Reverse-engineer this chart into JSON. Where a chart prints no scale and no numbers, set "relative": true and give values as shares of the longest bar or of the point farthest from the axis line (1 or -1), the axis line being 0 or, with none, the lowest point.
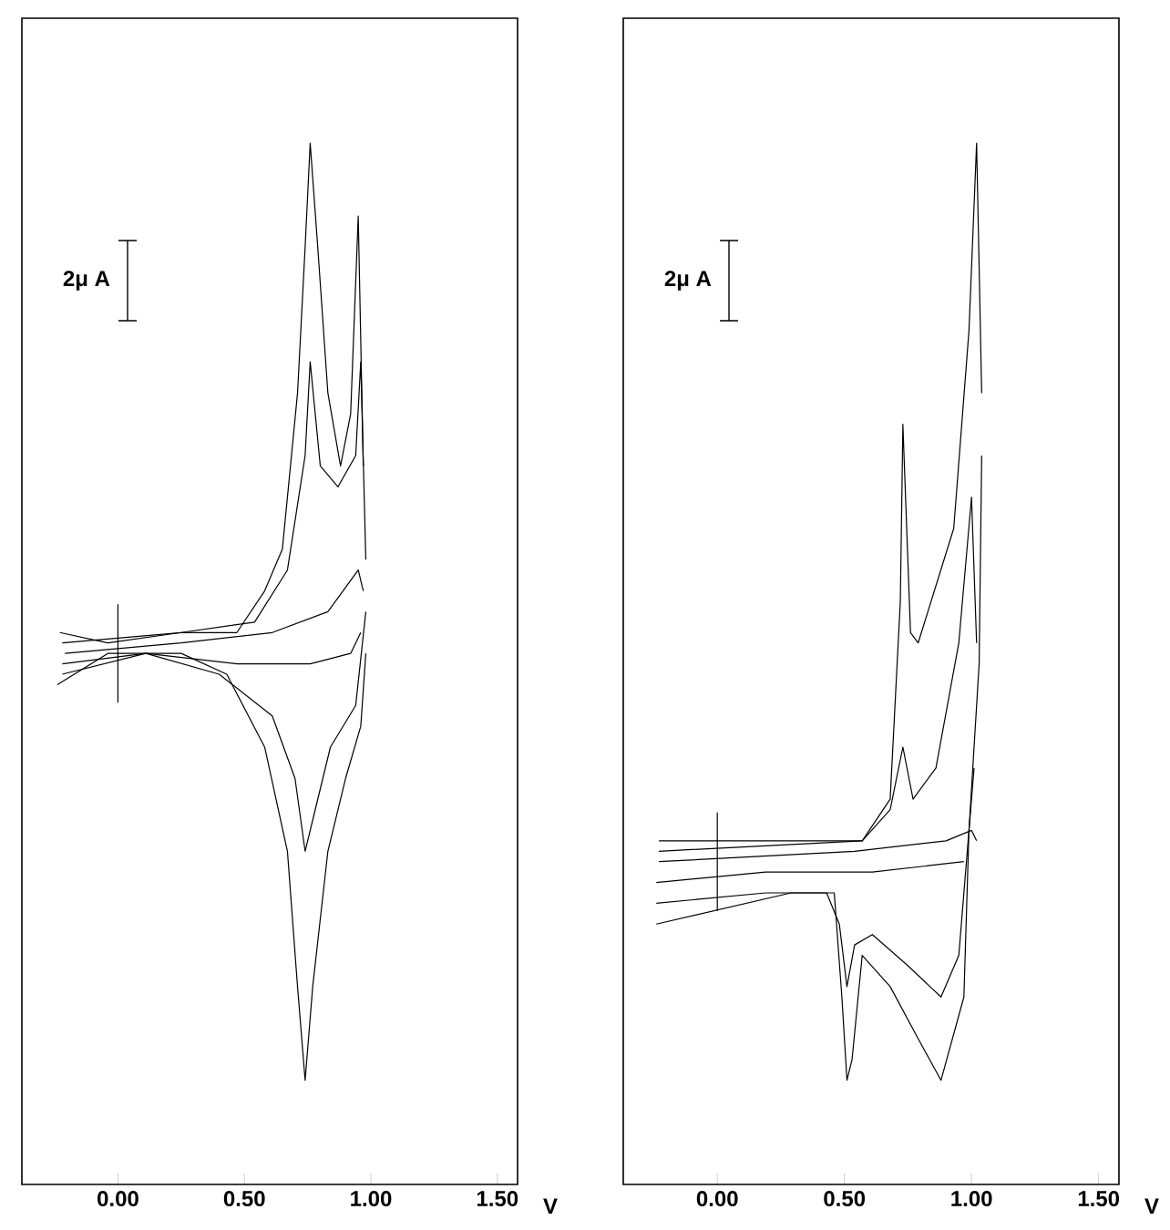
{
  "chart_data": [
    {
      "type": "line",
      "relative": true,
      "xlabel": "V",
      "xlim": [
        -0.38,
        1.58
      ],
      "xticks": [
        {
          "value": 0,
          "label": "0.00"
        },
        {
          "value": 0.5,
          "label": "0.50"
        },
        {
          "value": 1,
          "label": "1.00"
        },
        {
          "value": 1.5,
          "label": "1.50"
        }
      ],
      "tick_labels": "x",
      "annotations": [
        "2μ A"
      ],
      "series": [
        {
          "color": "#000000",
          "x": [
            -0.21,
            0.25,
            0.61,
            0.83,
            0.95,
            0.97
          ],
          "values": [
            0.51,
            0.52,
            0.53,
            0.55,
            0.59,
            0.57
          ]
        },
        {
          "color": "#000000",
          "x": [
            0.96,
            0.92,
            0.76,
            0.47,
            0.11,
            -0.22
          ],
          "values": [
            0.53,
            0.51,
            0.5,
            0.5,
            0.51,
            0.5
          ]
        },
        {
          "color": "#000000",
          "x": [
            -0.22,
            0.25,
            0.54,
            0.67,
            0.74,
            0.76,
            0.8,
            0.87,
            0.94,
            0.96,
            0.98
          ],
          "values": [
            0.52,
            0.53,
            0.54,
            0.59,
            0.7,
            0.79,
            0.69,
            0.67,
            0.7,
            0.79,
            0.6
          ]
        },
        {
          "color": "#000000",
          "x": [
            0.98,
            0.94,
            0.84,
            0.77,
            0.74,
            0.7,
            0.61,
            0.4,
            0.11,
            -0.22
          ],
          "values": [
            0.55,
            0.46,
            0.42,
            0.35,
            0.32,
            0.39,
            0.45,
            0.49,
            0.51,
            0.49
          ]
        },
        {
          "color": "#000000",
          "x": [
            -0.23,
            -0.04,
            0.25,
            0.47,
            0.58,
            0.65,
            0.71,
            0.74,
            0.76,
            0.79,
            0.83,
            0.88,
            0.92,
            0.95,
            0.97
          ],
          "values": [
            0.53,
            0.52,
            0.53,
            0.53,
            0.57,
            0.61,
            0.76,
            0.9,
            1.0,
            0.9,
            0.76,
            0.69,
            0.74,
            0.93,
            0.69
          ]
        },
        {
          "color": "#000000",
          "x": [
            0.98,
            0.96,
            0.9,
            0.83,
            0.77,
            0.74,
            0.71,
            0.67,
            0.58,
            0.43,
            0.25,
            -0.04,
            -0.24
          ],
          "values": [
            0.51,
            0.44,
            0.39,
            0.32,
            0.19,
            0.1,
            0.19,
            0.32,
            0.42,
            0.49,
            0.51,
            0.51,
            0.48
          ]
        }
      ]
    },
    {
      "type": "line",
      "relative": true,
      "xlabel": "V",
      "xlim": [
        -0.37,
        1.58
      ],
      "xticks": [
        {
          "value": 0,
          "label": "0.00"
        },
        {
          "value": 0.5,
          "label": "0.50"
        },
        {
          "value": 1,
          "label": "1.00"
        },
        {
          "value": 1.5,
          "label": "1.50"
        }
      ],
      "tick_labels": "x",
      "annotations": [
        "2μ A"
      ],
      "series": [
        {
          "color": "#000000",
          "x": [
            -0.23,
            0.54,
            0.9,
            1.0,
            1.02
          ],
          "values": [
            0.31,
            0.32,
            0.33,
            0.34,
            0.33
          ]
        },
        {
          "color": "#000000",
          "x": [
            0.97,
            0.61,
            0.47,
            0.19,
            -0.24
          ],
          "values": [
            0.31,
            0.3,
            0.3,
            0.3,
            0.29
          ]
        },
        {
          "color": "#000000",
          "x": [
            -0.23,
            0.57,
            0.68,
            0.73,
            0.77,
            0.86,
            0.95,
            1.0,
            1.02
          ],
          "values": [
            0.32,
            0.33,
            0.36,
            0.42,
            0.37,
            0.4,
            0.52,
            0.66,
            0.52
          ]
        },
        {
          "color": "#000000",
          "x": [
            1.01,
            0.95,
            0.88,
            0.75,
            0.61,
            0.54,
            0.51,
            0.48,
            0.43,
            0.19,
            -0.24
          ],
          "values": [
            0.4,
            0.22,
            0.18,
            0.21,
            0.24,
            0.23,
            0.19,
            0.25,
            0.28,
            0.28,
            0.27
          ]
        },
        {
          "color": "#000000",
          "x": [
            -0.23,
            0.57,
            0.68,
            0.72,
            0.73,
            0.76,
            0.79,
            0.93,
            0.99,
            1.02,
            1.04
          ],
          "values": [
            0.33,
            0.33,
            0.37,
            0.56,
            0.73,
            0.53,
            0.52,
            0.63,
            0.82,
            1.0,
            0.76
          ]
        },
        {
          "color": "#000000",
          "x": [
            1.04,
            1.03,
            0.99,
            0.97,
            0.88,
            0.79,
            0.68,
            0.57,
            0.53,
            0.51,
            0.49,
            0.46,
            0.29,
            -0.24
          ],
          "values": [
            0.7,
            0.5,
            0.34,
            0.18,
            0.1,
            0.14,
            0.19,
            0.22,
            0.12,
            0.1,
            0.18,
            0.28,
            0.28,
            0.25
          ]
        }
      ]
    }
  ]
}
